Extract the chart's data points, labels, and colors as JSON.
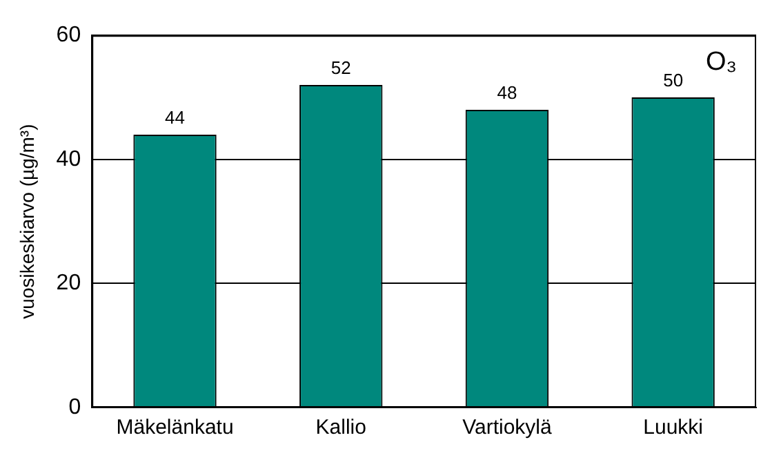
{
  "chart_data": {
    "type": "bar",
    "ylabel": "vuosikeskiarvo (µg/m³)",
    "categories": [
      "Mäkelänkatu",
      "Kallio",
      "Vartiokylä",
      "Luukki"
    ],
    "values": [
      44,
      52,
      48,
      50
    ],
    "color": "#00887d",
    "ylim": [
      0,
      60
    ],
    "yticks": [
      0,
      20,
      40,
      60
    ],
    "grid": "y",
    "data_labels": true,
    "legend": false,
    "annotations": [
      "O₃"
    ]
  }
}
